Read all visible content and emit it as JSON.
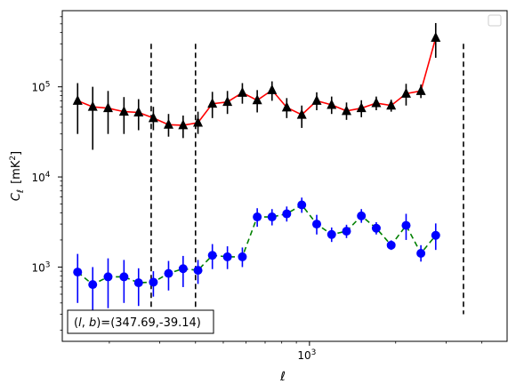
{
  "chart_data": {
    "type": "scatter",
    "title": "",
    "xlabel": "ℓ",
    "ylabel_main": "C",
    "ylabel_sub": "ℓ",
    "ylabel_unit": "[mK",
    "ylabel_unit_sup": "2",
    "ylabel_unit_close": "]",
    "xscale": "log",
    "yscale": "log",
    "xlim": [
      137,
      4900
    ],
    "ylim": [
      150,
      700000
    ],
    "xticks": [
      {
        "value": 1000,
        "base": "10",
        "exp": "3"
      }
    ],
    "yticks": [
      {
        "value": 1000,
        "base": "10",
        "exp": "3"
      },
      {
        "value": 10000,
        "base": "10",
        "exp": "4"
      },
      {
        "value": 100000,
        "base": "10",
        "exp": "5"
      }
    ],
    "grid": false,
    "legend": "top-right (empty)",
    "vlines": [
      280,
      400,
      3450
    ],
    "vline_range": [
      300,
      300000
    ],
    "annotation": "(l, b)=(347.69,-39.14)",
    "series": [
      {
        "marker": "triangle",
        "marker_color": "#000000",
        "line_color": "#ff0000",
        "line_style": "solid",
        "points": [
          {
            "x": 155,
            "y": 70000,
            "lo": 30000,
            "hi": 110000
          },
          {
            "x": 175,
            "y": 60000,
            "lo": 20000,
            "hi": 100000
          },
          {
            "x": 198,
            "y": 58000,
            "lo": 30000,
            "hi": 90000
          },
          {
            "x": 225,
            "y": 53000,
            "lo": 30000,
            "hi": 77000
          },
          {
            "x": 253,
            "y": 52000,
            "lo": 33000,
            "hi": 73000
          },
          {
            "x": 285,
            "y": 45000,
            "lo": 33000,
            "hi": 60000
          },
          {
            "x": 322,
            "y": 38000,
            "lo": 28000,
            "hi": 50000
          },
          {
            "x": 362,
            "y": 37500,
            "lo": 27000,
            "hi": 48000
          },
          {
            "x": 408,
            "y": 40000,
            "lo": 30000,
            "hi": 53000
          },
          {
            "x": 458,
            "y": 65000,
            "lo": 45000,
            "hi": 88000
          },
          {
            "x": 517,
            "y": 68000,
            "lo": 50000,
            "hi": 90000
          },
          {
            "x": 583,
            "y": 86000,
            "lo": 65000,
            "hi": 110000
          },
          {
            "x": 657,
            "y": 71000,
            "lo": 52000,
            "hi": 92000
          },
          {
            "x": 740,
            "y": 92000,
            "lo": 70000,
            "hi": 115000
          },
          {
            "x": 833,
            "y": 59000,
            "lo": 45000,
            "hi": 75000
          },
          {
            "x": 940,
            "y": 49000,
            "lo": 35000,
            "hi": 62000
          },
          {
            "x": 1060,
            "y": 70000,
            "lo": 55000,
            "hi": 87000
          },
          {
            "x": 1195,
            "y": 63000,
            "lo": 50000,
            "hi": 78000
          },
          {
            "x": 1347,
            "y": 54000,
            "lo": 43000,
            "hi": 67000
          },
          {
            "x": 1518,
            "y": 58000,
            "lo": 46000,
            "hi": 71000
          },
          {
            "x": 1711,
            "y": 66000,
            "lo": 55000,
            "hi": 78000
          },
          {
            "x": 1929,
            "y": 62000,
            "lo": 53000,
            "hi": 72000
          },
          {
            "x": 2175,
            "y": 84000,
            "lo": 62000,
            "hi": 108000
          },
          {
            "x": 2450,
            "y": 90000,
            "lo": 75000,
            "hi": 106000
          },
          {
            "x": 2760,
            "y": 350000,
            "lo": 210000,
            "hi": 510000
          }
        ]
      },
      {
        "marker": "circle",
        "marker_color": "#0000ff",
        "line_color": "#008000",
        "line_style": "dashed",
        "points": [
          {
            "x": 155,
            "y": 880,
            "lo": 400,
            "hi": 1400
          },
          {
            "x": 175,
            "y": 640,
            "lo": 300,
            "hi": 1000
          },
          {
            "x": 198,
            "y": 780,
            "lo": 350,
            "hi": 1250
          },
          {
            "x": 225,
            "y": 780,
            "lo": 400,
            "hi": 1200
          },
          {
            "x": 253,
            "y": 670,
            "lo": 370,
            "hi": 970
          },
          {
            "x": 285,
            "y": 680,
            "lo": 470,
            "hi": 900
          },
          {
            "x": 322,
            "y": 850,
            "lo": 550,
            "hi": 1170
          },
          {
            "x": 362,
            "y": 960,
            "lo": 600,
            "hi": 1330
          },
          {
            "x": 408,
            "y": 920,
            "lo": 650,
            "hi": 1200
          },
          {
            "x": 458,
            "y": 1350,
            "lo": 950,
            "hi": 1800
          },
          {
            "x": 517,
            "y": 1300,
            "lo": 950,
            "hi": 1700
          },
          {
            "x": 583,
            "y": 1300,
            "lo": 1000,
            "hi": 1650
          },
          {
            "x": 657,
            "y": 3600,
            "lo": 2800,
            "hi": 4500
          },
          {
            "x": 740,
            "y": 3600,
            "lo": 2900,
            "hi": 4400
          },
          {
            "x": 833,
            "y": 3900,
            "lo": 3200,
            "hi": 4700
          },
          {
            "x": 940,
            "y": 4900,
            "lo": 4000,
            "hi": 5900
          },
          {
            "x": 1060,
            "y": 3000,
            "lo": 2300,
            "hi": 3800
          },
          {
            "x": 1195,
            "y": 2300,
            "lo": 1900,
            "hi": 2750
          },
          {
            "x": 1347,
            "y": 2500,
            "lo": 2100,
            "hi": 2950
          },
          {
            "x": 1518,
            "y": 3700,
            "lo": 3100,
            "hi": 4400
          },
          {
            "x": 1711,
            "y": 2700,
            "lo": 2300,
            "hi": 3150
          },
          {
            "x": 1929,
            "y": 1750,
            "lo": 1550,
            "hi": 1980
          },
          {
            "x": 2175,
            "y": 2900,
            "lo": 2000,
            "hi": 3900
          },
          {
            "x": 2450,
            "y": 1420,
            "lo": 1150,
            "hi": 1750
          },
          {
            "x": 2760,
            "y": 2250,
            "lo": 1550,
            "hi": 3050
          }
        ]
      }
    ]
  }
}
